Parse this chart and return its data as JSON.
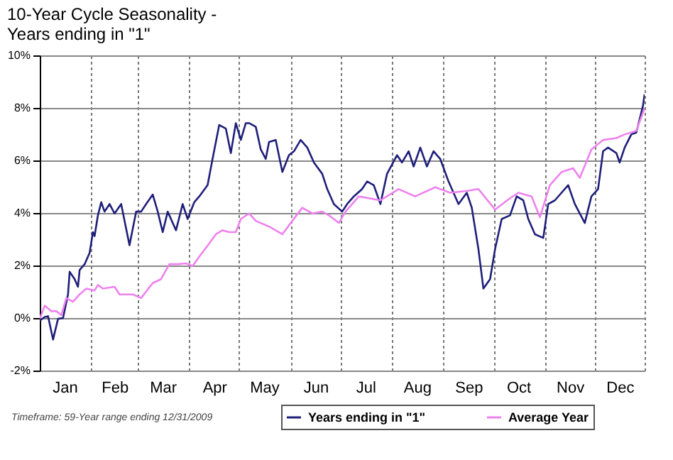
{
  "chart_data": {
    "type": "line",
    "title": [
      "10-Year Cycle Seasonality -",
      "Years ending in \"1\""
    ],
    "annotations": [
      "Timeframe: 59-Year range ending 12/31/2009"
    ],
    "xlim": [
      "--01-01",
      "--12-31"
    ],
    "xticks": [
      {
        "value": "--01-01",
        "label": null
      },
      {
        "value": "--01-16",
        "label": "Jan"
      },
      {
        "value": "--02-01",
        "label": null
      },
      {
        "value": "--02-15",
        "label": "Feb"
      },
      {
        "value": "--03-01",
        "label": null
      },
      {
        "value": "--03-16",
        "label": "Mar"
      },
      {
        "value": "--04-01",
        "label": null
      },
      {
        "value": "--04-16",
        "label": "Apr"
      },
      {
        "value": "--05-01",
        "label": null
      },
      {
        "value": "--05-16",
        "label": "May"
      },
      {
        "value": "--06-01",
        "label": null
      },
      {
        "value": "--06-16",
        "label": "Jun"
      },
      {
        "value": "--07-01",
        "label": null
      },
      {
        "value": "--07-16",
        "label": "Jul"
      },
      {
        "value": "--08-01",
        "label": null
      },
      {
        "value": "--08-16",
        "label": "Aug"
      },
      {
        "value": "--09-01",
        "label": null
      },
      {
        "value": "--09-16",
        "label": "Sep"
      },
      {
        "value": "--10-01",
        "label": null
      },
      {
        "value": "--10-16",
        "label": "Oct"
      },
      {
        "value": "--11-01",
        "label": null
      },
      {
        "value": "--11-16",
        "label": "Nov"
      },
      {
        "value": "--12-01",
        "label": null
      },
      {
        "value": "--12-16",
        "label": "Dec"
      },
      {
        "value": "--12-31",
        "label": null
      }
    ],
    "ylim": [
      -2,
      10
    ],
    "yticks": [
      {
        "value": -2,
        "label": "-2%"
      },
      {
        "value": 0,
        "label": "0%"
      },
      {
        "value": 2,
        "label": "2%"
      },
      {
        "value": 4,
        "label": "4%"
      },
      {
        "value": 6,
        "label": "6%"
      },
      {
        "value": 8,
        "label": "8%"
      },
      {
        "value": 10,
        "label": "10%"
      }
    ],
    "grid": true,
    "legend": "bottom",
    "series": [
      {
        "name": "Years ending in \"1\"",
        "color": "#1f1f7a",
        "x": [
          "--01-01",
          "--01-04",
          "--01-06",
          "--01-09",
          "--01-12",
          "--01-15",
          "--01-18",
          "--01-19",
          "--01-22",
          "--01-24",
          "--01-25",
          "--01-28",
          "--01-31",
          "--02-02",
          "--02-03",
          "--02-05",
          "--02-07",
          "--02-09",
          "--02-12",
          "--02-15",
          "--02-19",
          "--02-24",
          "--02-28",
          "--03-03",
          "--03-06",
          "--03-10",
          "--03-13",
          "--03-16",
          "--03-19",
          "--03-24",
          "--03-28",
          "--03-31",
          "--04-04",
          "--04-07",
          "--04-12",
          "--04-15",
          "--04-19",
          "--04-23",
          "--04-26",
          "--04-29",
          "--05-02",
          "--05-05",
          "--05-07",
          "--05-11",
          "--05-14",
          "--05-17",
          "--05-19",
          "--05-23",
          "--05-27",
          "--05-31",
          "--06-03",
          "--06-07",
          "--06-11",
          "--06-15",
          "--06-20",
          "--06-23",
          "--06-27",
          "--07-02",
          "--07-05",
          "--07-09",
          "--07-14",
          "--07-17",
          "--07-21",
          "--07-25",
          "--07-29",
          "--08-04",
          "--08-07",
          "--08-11",
          "--08-14",
          "--08-18",
          "--08-22",
          "--08-26",
          "--08-30",
          "--09-04",
          "--09-10",
          "--09-15",
          "--09-18",
          "--09-22",
          "--09-25",
          "--09-29",
          "--10-02",
          "--10-06",
          "--10-11",
          "--10-15",
          "--10-19",
          "--10-22",
          "--10-26",
          "--10-31",
          "--11-03",
          "--11-07",
          "--11-11",
          "--11-15",
          "--11-19",
          "--11-25",
          "--11-29",
          "--12-03",
          "--12-06",
          "--12-09",
          "--12-14",
          "--12-16",
          "--12-19",
          "--12-23",
          "--12-26",
          "--12-30",
          "--12-31"
        ],
        "values": [
          -0.1,
          0.04,
          0.07,
          -0.82,
          -0.03,
          0,
          0.9,
          1.76,
          1.48,
          1.19,
          1.83,
          2.05,
          2.48,
          3.27,
          3.12,
          3.91,
          4.41,
          4.05,
          4.34,
          3.98,
          4.34,
          2.77,
          4.05,
          4.05,
          4.34,
          4.7,
          4.05,
          3.27,
          4.05,
          3.34,
          4.34,
          3.77,
          4.41,
          4.63,
          5.06,
          6.06,
          7.35,
          7.21,
          6.28,
          7.42,
          6.78,
          7.42,
          7.42,
          7.28,
          6.42,
          6.06,
          6.7,
          6.78,
          5.56,
          6.2,
          6.35,
          6.78,
          6.49,
          5.92,
          5.49,
          4.91,
          4.34,
          4.05,
          4.34,
          4.63,
          4.91,
          5.2,
          5.06,
          4.34,
          5.49,
          6.2,
          5.92,
          6.35,
          5.77,
          6.49,
          5.77,
          6.35,
          6.06,
          5.2,
          4.34,
          4.77,
          4.2,
          2.62,
          1.12,
          1.48,
          2.62,
          3.77,
          3.91,
          4.63,
          4.48,
          3.77,
          3.19,
          3.05,
          4.34,
          4.48,
          4.77,
          5.06,
          4.34,
          3.62,
          4.63,
          4.91,
          6.35,
          6.49,
          6.28,
          5.92,
          6.49,
          6.99,
          7.06,
          8.07,
          8.52
        ]
      },
      {
        "name": "Average Year",
        "color": "#ee82ee",
        "x": [
          "--01-01",
          "--01-04",
          "--01-08",
          "--01-11",
          "--01-14",
          "--01-17",
          "--01-21",
          "--01-25",
          "--01-29",
          "--02-03",
          "--02-05",
          "--02-08",
          "--02-15",
          "--02-18",
          "--02-26",
          "--03-03",
          "--03-10",
          "--03-15",
          "--03-20",
          "--03-25",
          "--03-30",
          "--04-03",
          "--04-07",
          "--04-13",
          "--04-17",
          "--04-21",
          "--04-25",
          "--04-29",
          "--05-02",
          "--05-07",
          "--05-11",
          "--05-19",
          "--05-27",
          "--06-02",
          "--06-08",
          "--06-14",
          "--06-20",
          "--06-24",
          "--06-30",
          "--07-04",
          "--07-12",
          "--07-25",
          "--08-05",
          "--08-15",
          "--08-27",
          "--09-05",
          "--09-15",
          "--09-22",
          "--10-02",
          "--10-11",
          "--10-16",
          "--10-24",
          "--10-29",
          "--11-04",
          "--11-11",
          "--11-18",
          "--11-22",
          "--11-29",
          "--12-06",
          "--12-14",
          "--12-19",
          "--12-26",
          "--12-31"
        ],
        "values": [
          -0.03,
          0.47,
          0.26,
          0.26,
          0.11,
          0.76,
          0.62,
          0.9,
          1.12,
          1.05,
          1.26,
          1.12,
          1.19,
          0.9,
          0.9,
          0.76,
          1.33,
          1.48,
          2.05,
          2.05,
          2.08,
          1.98,
          2.34,
          2.84,
          3.19,
          3.34,
          3.27,
          3.27,
          3.77,
          3.98,
          3.7,
          3.48,
          3.19,
          3.7,
          4.2,
          3.98,
          4.05,
          3.91,
          3.62,
          4.05,
          4.63,
          4.48,
          4.91,
          4.63,
          4.98,
          4.77,
          4.84,
          4.91,
          4.13,
          4.56,
          4.77,
          4.63,
          3.84,
          5.06,
          5.56,
          5.7,
          5.34,
          6.42,
          6.78,
          6.85,
          6.99,
          7.13,
          7.99
        ]
      }
    ]
  }
}
